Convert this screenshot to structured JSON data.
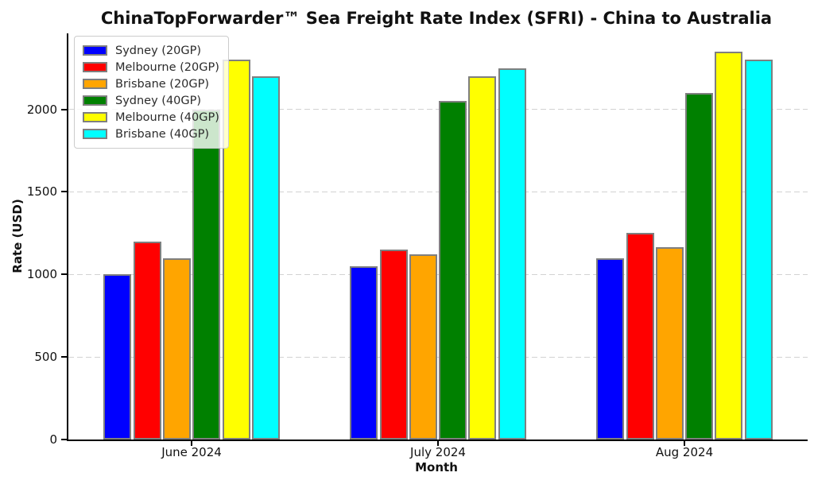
{
  "chart_data": {
    "type": "bar",
    "title": "ChinaTopForwarder™ Sea Freight Rate Index (SFRI) - China to Australia",
    "xlabel": "Month",
    "ylabel": "Rate (USD)",
    "categories": [
      "June 2024",
      "July 2024",
      "Aug 2024"
    ],
    "series": [
      {
        "name": "Sydney (20GP)",
        "color": "#0000ff",
        "values": [
          1000,
          1050,
          1100
        ]
      },
      {
        "name": "Melbourne (20GP)",
        "color": "#ff0000",
        "values": [
          1200,
          1150,
          1250
        ]
      },
      {
        "name": "Brisbane (20GP)",
        "color": "#ffa500",
        "values": [
          1100,
          1120,
          1165
        ]
      },
      {
        "name": "Sydney (40GP)",
        "color": "#008000",
        "values": [
          2000,
          2050,
          2100
        ]
      },
      {
        "name": "Melbourne (40GP)",
        "color": "#ffff00",
        "values": [
          2300,
          2200,
          2350
        ]
      },
      {
        "name": "Brisbane (40GP)",
        "color": "#00ffff",
        "values": [
          2200,
          2250,
          2300
        ]
      }
    ],
    "yticks": [
      0,
      500,
      1000,
      1500,
      2000
    ],
    "ylim": [
      0,
      2460
    ],
    "grid": "horizontal-dashed",
    "legend_position": "upper-left",
    "bar_edge_color": "#7f7f7f",
    "grid_color": "#d2d2d2",
    "background_color": "#ffffff"
  }
}
